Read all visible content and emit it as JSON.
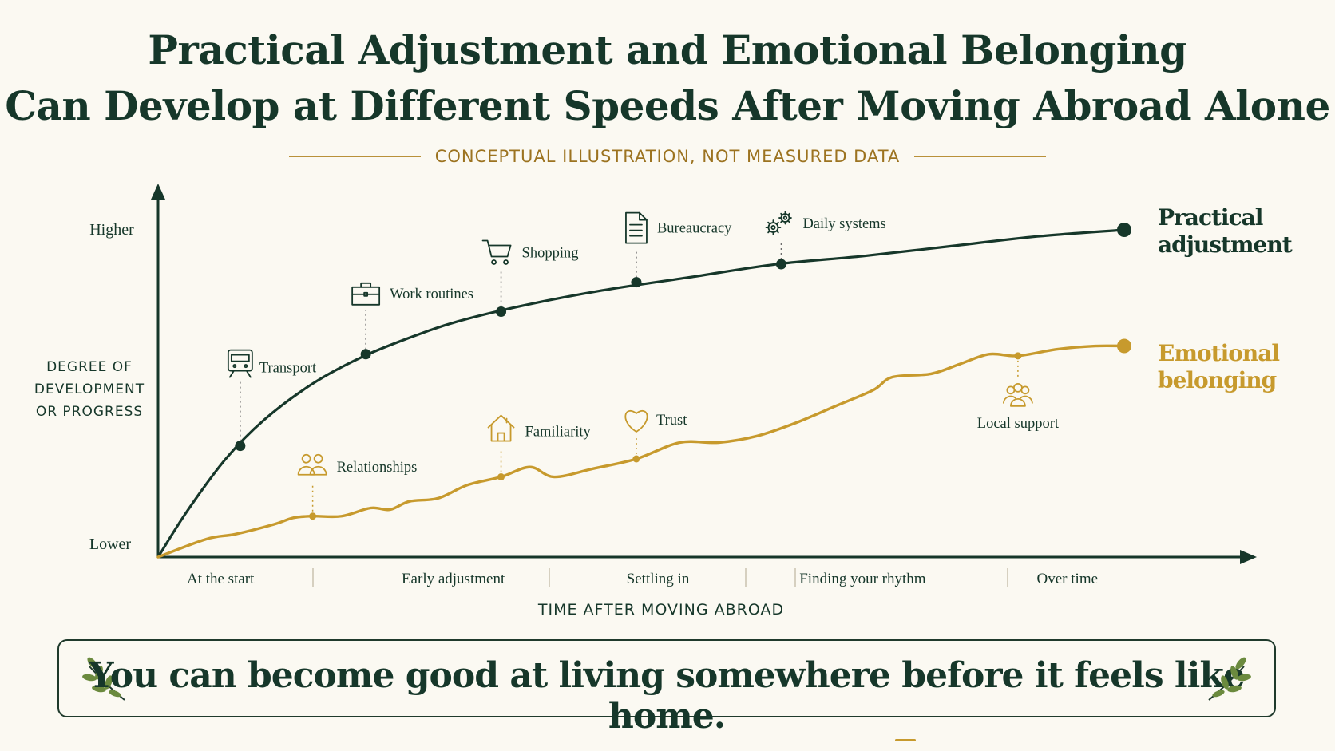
{
  "title_line1": "Practical Adjustment and Emotional Belonging",
  "title_line2": "Can Develop at Different Speeds After Moving Abroad Alone",
  "subtitle": "CONCEPTUAL ILLUSTRATION, NOT MEASURED DATA",
  "colors": {
    "practical": "#16372a",
    "emotional": "#c79a2d",
    "background": "#fbf9f2"
  },
  "chart_data": {
    "type": "line",
    "ylabel": [
      "DEGREE OF",
      "DEVELOPMENT",
      "OR PROGRESS"
    ],
    "ytick_high": "Higher",
    "ytick_low": "Lower",
    "xlabel": "TIME AFTER MOVING ABROAD",
    "categories": [
      "At the start",
      "Early adjustment",
      "Settling in",
      "Finding your rhythm",
      "Over time"
    ],
    "xlim": [
      0,
      100
    ],
    "ylim": [
      0,
      100
    ],
    "grid": false,
    "series": [
      {
        "name": "Practical adjustment",
        "name_lines": [
          "Practical",
          "adjustment"
        ],
        "color": "#16372a",
        "x": [
          0,
          3,
          7,
          11,
          16,
          21,
          26,
          31,
          38,
          46,
          55,
          64,
          73,
          82,
          91,
          100
        ],
        "y": [
          0,
          14,
          30,
          42,
          53,
          61,
          67,
          72,
          77,
          81.5,
          85.5,
          89.5,
          92,
          95,
          98,
          100
        ],
        "markers": [
          {
            "x": 8.5,
            "y": 34,
            "label": "Transport",
            "icon": "train-icon"
          },
          {
            "x": 21.5,
            "y": 62,
            "label": "Work routines",
            "icon": "briefcase-icon"
          },
          {
            "x": 35.5,
            "y": 75,
            "label": "Shopping",
            "icon": "shopping-cart-icon"
          },
          {
            "x": 49.5,
            "y": 84,
            "label": "Bureaucracy",
            "icon": "document-icon"
          },
          {
            "x": 64.5,
            "y": 89.5,
            "label": "Daily systems",
            "icon": "gears-icon"
          }
        ]
      },
      {
        "name": "Emotional belonging",
        "name_lines": [
          "Emotional",
          "belonging"
        ],
        "color": "#c79a2d",
        "x": [
          0,
          5,
          8,
          12,
          14,
          16,
          19,
          22,
          24,
          26,
          29,
          32,
          35.5,
          38.5,
          41,
          45,
          49.5,
          54,
          58,
          62,
          66,
          70,
          74,
          76,
          80,
          83,
          86,
          89,
          93,
          97,
          100
        ],
        "y": [
          0,
          5.5,
          7,
          10,
          12,
          12.5,
          12.5,
          15,
          14.5,
          17,
          18,
          22,
          24.5,
          27.5,
          24.5,
          27,
          30,
          35,
          35,
          37,
          41,
          46,
          51,
          55,
          56,
          59,
          62,
          61.5,
          63.5,
          64.5,
          64.5
        ],
        "markers": [
          {
            "x": 16,
            "y": 12.5,
            "label": "Relationships",
            "icon": "people-icon"
          },
          {
            "x": 35.5,
            "y": 24.5,
            "label": "Familiarity",
            "icon": "house-icon"
          },
          {
            "x": 49.5,
            "y": 30,
            "label": "Trust",
            "icon": "heart-icon"
          },
          {
            "x": 89,
            "y": 61.5,
            "label": "Local support",
            "icon": "group-icon"
          }
        ]
      }
    ]
  },
  "quote": {
    "part1": "You can become good at living somewhere ",
    "part2": "before it feels like home."
  },
  "decor": {
    "left": "laurel-sprig-icon",
    "right": "laurel-sprig-icon"
  }
}
